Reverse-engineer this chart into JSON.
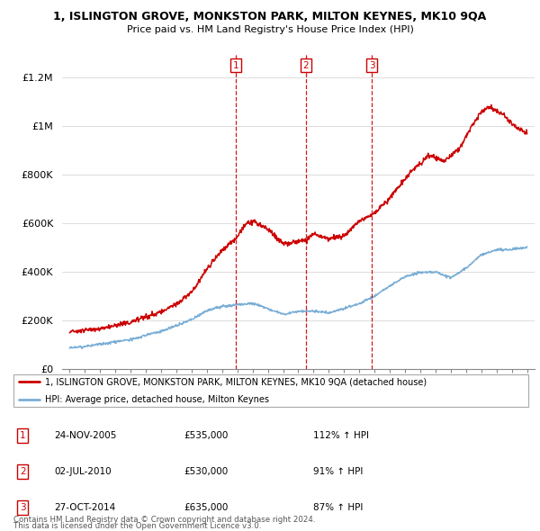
{
  "title": "1, ISLINGTON GROVE, MONKSTON PARK, MILTON KEYNES, MK10 9QA",
  "subtitle": "Price paid vs. HM Land Registry's House Price Index (HPI)",
  "ylim": [
    0,
    1300000
  ],
  "yticks": [
    0,
    200000,
    400000,
    600000,
    800000,
    1000000,
    1200000
  ],
  "ytick_labels": [
    "£0",
    "£200K",
    "£400K",
    "£600K",
    "£800K",
    "£1M",
    "£1.2M"
  ],
  "xlim_start": 1994.5,
  "xlim_end": 2025.5,
  "sales": [
    {
      "date_num": 2005.9,
      "price": 535000,
      "label": "1"
    },
    {
      "date_num": 2010.5,
      "price": 530000,
      "label": "2"
    },
    {
      "date_num": 2014.83,
      "price": 635000,
      "label": "3"
    }
  ],
  "sale_dates_str": [
    "24-NOV-2005",
    "02-JUL-2010",
    "27-OCT-2014"
  ],
  "sale_prices_str": [
    "£535,000",
    "£530,000",
    "£635,000"
  ],
  "sale_hpi_str": [
    "112% ↑ HPI",
    "91% ↑ HPI",
    "87% ↑ HPI"
  ],
  "legend_line1": "1, ISLINGTON GROVE, MONKSTON PARK, MILTON KEYNES, MK10 9QA (detached house)",
  "legend_line2": "HPI: Average price, detached house, Milton Keynes",
  "footer1": "Contains HM Land Registry data © Crown copyright and database right 2024.",
  "footer2": "This data is licensed under the Open Government Licence v3.0.",
  "line_color_red": "#cc0000",
  "line_color_blue": "#7aaed6",
  "grid_color": "#dddddd",
  "red_anchors_x": [
    1995.0,
    1996.0,
    1997.0,
    1998.0,
    1999.0,
    2000.0,
    2001.0,
    2002.0,
    2003.0,
    2004.0,
    2005.0,
    2005.9,
    2006.5,
    2007.0,
    2008.0,
    2009.0,
    2010.5,
    2011.0,
    2011.5,
    2012.0,
    2013.0,
    2014.0,
    2014.83,
    2015.5,
    2016.5,
    2017.5,
    2018.5,
    2019.0,
    2019.5,
    2020.0,
    2020.5,
    2021.5,
    2022.0,
    2022.5,
    2023.0,
    2023.5,
    2024.0,
    2024.5,
    2025.0
  ],
  "red_anchors_y": [
    155000,
    160000,
    168000,
    178000,
    195000,
    218000,
    235000,
    268000,
    318000,
    410000,
    490000,
    535000,
    595000,
    610000,
    575000,
    515000,
    530000,
    555000,
    545000,
    535000,
    550000,
    608000,
    635000,
    670000,
    745000,
    820000,
    875000,
    870000,
    855000,
    875000,
    905000,
    1010000,
    1060000,
    1080000,
    1060000,
    1045000,
    1010000,
    985000,
    970000
  ],
  "blue_anchors_x": [
    1995.0,
    1996.0,
    1997.0,
    1998.0,
    1999.0,
    2000.0,
    2001.0,
    2002.0,
    2003.0,
    2004.0,
    2005.0,
    2006.0,
    2007.0,
    2008.0,
    2009.0,
    2010.0,
    2011.0,
    2012.0,
    2013.0,
    2014.0,
    2015.0,
    2016.0,
    2017.0,
    2018.0,
    2019.0,
    2020.0,
    2021.0,
    2022.0,
    2023.0,
    2024.0,
    2025.0
  ],
  "blue_anchors_y": [
    88000,
    93000,
    103000,
    112000,
    122000,
    140000,
    155000,
    178000,
    205000,
    240000,
    258000,
    265000,
    270000,
    248000,
    225000,
    238000,
    238000,
    232000,
    248000,
    270000,
    300000,
    342000,
    380000,
    398000,
    400000,
    375000,
    415000,
    470000,
    490000,
    492000,
    500000
  ]
}
